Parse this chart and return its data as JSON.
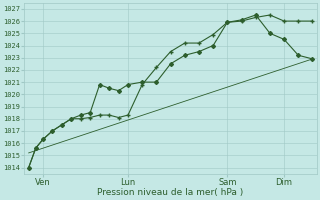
{
  "xlabel": "Pression niveau de la mer( hPa )",
  "ylim": [
    1013.5,
    1027.5
  ],
  "xlim": [
    -2,
    122
  ],
  "background_color": "#c5e8e5",
  "grid_color": "#a0c8c5",
  "line_color": "#2d5e2d",
  "x_tick_labels": [
    "Ven",
    "Lun",
    "Sam",
    "Dim"
  ],
  "x_tick_positions": [
    6,
    42,
    84,
    108
  ],
  "ytick_min": 1014,
  "ytick_max": 1027,
  "line1_x": [
    0,
    3,
    6,
    10,
    14,
    18,
    22,
    26,
    30,
    34,
    38,
    42,
    48,
    54,
    60,
    66,
    72,
    78,
    84,
    90,
    96,
    102,
    108,
    114,
    120
  ],
  "line1_y": [
    1014.0,
    1015.6,
    1016.3,
    1017.0,
    1017.5,
    1018.0,
    1018.0,
    1018.1,
    1018.3,
    1018.3,
    1018.1,
    1018.3,
    1020.8,
    1022.2,
    1023.5,
    1024.2,
    1024.2,
    1024.9,
    1025.9,
    1026.0,
    1026.3,
    1026.5,
    1026.0,
    1026.0,
    1026.0
  ],
  "line2_x": [
    0,
    3,
    6,
    10,
    14,
    18,
    22,
    26,
    30,
    34,
    38,
    42,
    48,
    54,
    60,
    66,
    72,
    78,
    84,
    90,
    96,
    102,
    108,
    114,
    120
  ],
  "line2_y": [
    1014.0,
    1015.6,
    1016.3,
    1017.0,
    1017.5,
    1018.0,
    1018.3,
    1018.5,
    1020.8,
    1020.5,
    1020.3,
    1020.8,
    1021.0,
    1021.0,
    1022.5,
    1023.2,
    1023.5,
    1024.0,
    1025.9,
    1026.1,
    1026.5,
    1025.0,
    1024.5,
    1023.2,
    1022.9
  ],
  "line3_x": [
    0,
    120
  ],
  "line3_y": [
    1015.2,
    1022.9
  ],
  "markersize": 2.0,
  "linewidth": 0.8,
  "label_fontsize": 6.0,
  "tick_fontsize": 5.0,
  "xlabel_fontsize": 6.5
}
